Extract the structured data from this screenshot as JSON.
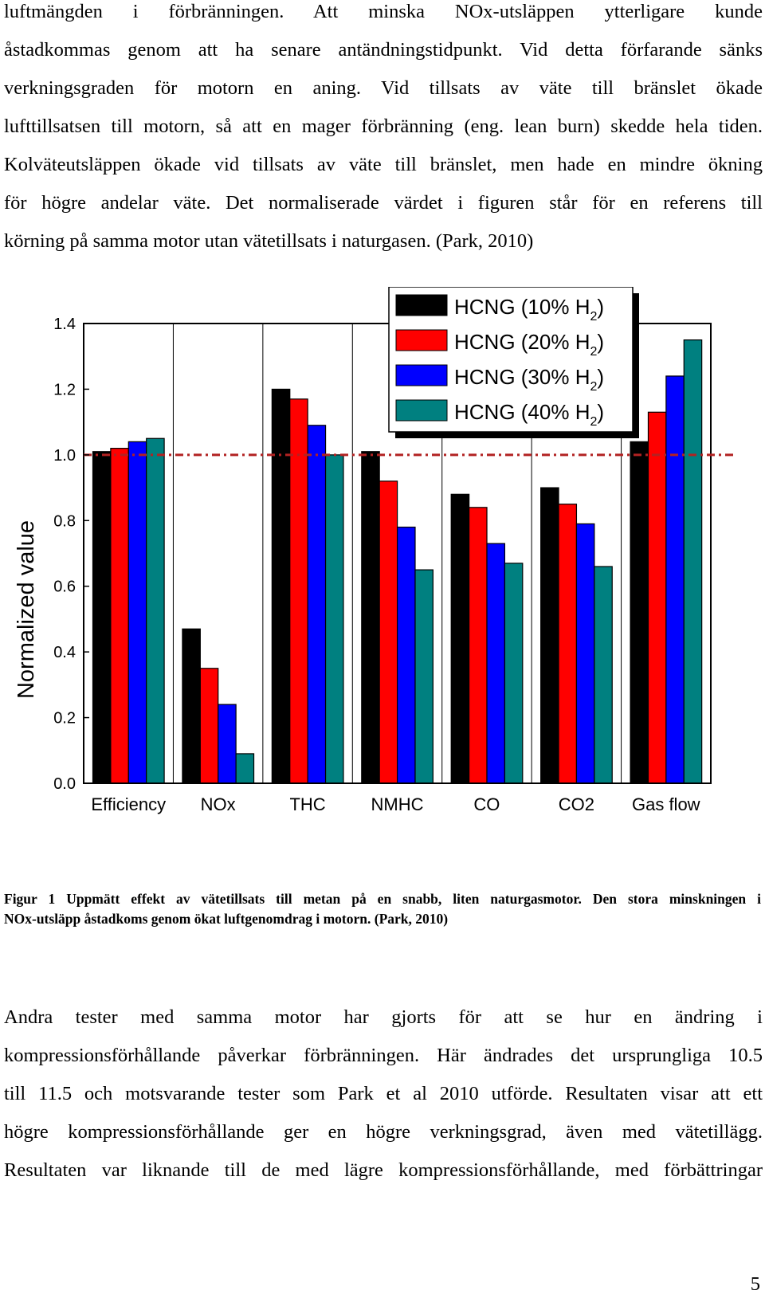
{
  "paragraph_1": {
    "lines": [
      "luftmängden i förbränningen. Att minska NOx-utsläppen ytterligare kunde",
      "åstadkommas genom att ha senare antändningstidpunkt. Vid detta förfarande sänks",
      "verkningsgraden för motorn en aning. Vid tillsats av väte till bränslet ökade",
      "lufttillsatsen till motorn, så att en mager förbränning (eng. lean burn) skedde hela tiden.",
      "Kolväteutsläppen ökade vid tillsats av väte till bränslet, men hade en mindre ökning",
      "för högre andelar väte. Det normaliserade värdet i figuren står för en referens till",
      "körning på samma motor utan vätetillsats i naturgasen. (Park, 2010)"
    ]
  },
  "caption": {
    "lines": [
      "Figur 1 Uppmätt effekt av vätetillsats till metan på en snabb, liten naturgasmotor. Den stora minskningen i",
      "NOx-utsläpp åstadkoms genom ökat luftgenomdrag i motorn. (Park, 2010)"
    ]
  },
  "paragraph_2": {
    "lines": [
      "Andra tester med samma motor har gjorts för att se hur en ändring i",
      "kompressionsförhållande påverkar förbränningen. Här ändrades det ursprungliga 10.5",
      "till 11.5 och motsvarande tester som Park et al 2010 utförde. Resultaten visar att ett",
      "högre kompressionsförhållande ger en högre verkningsgrad, även med vätetillägg.",
      "Resultaten var liknande till de med lägre kompressionsförhållande, med förbättringar"
    ]
  },
  "page_number": "5",
  "chart_data": {
    "type": "bar",
    "title": "",
    "xlabel": "",
    "ylabel": "Normalized value",
    "ylim": [
      0,
      1.4
    ],
    "yticks": [
      "0.0",
      "0.2",
      "0.4",
      "0.6",
      "0.8",
      "1.0",
      "1.2",
      "1.4"
    ],
    "categories": [
      "Efficiency",
      "NOx",
      "THC",
      "NMHC",
      "CO",
      "CO2",
      "Gas flow"
    ],
    "reference_line": 1.0,
    "legend_position": "top-center",
    "series": [
      {
        "name": "HCNG (10% H",
        "sub": "2",
        "close": ")",
        "color": "#000000",
        "values": [
          1.01,
          0.47,
          1.2,
          1.01,
          0.88,
          0.9,
          1.04
        ]
      },
      {
        "name": "HCNG (20% H",
        "sub": "2",
        "close": ")",
        "color": "#ff0000",
        "values": [
          1.02,
          0.35,
          1.17,
          0.92,
          0.84,
          0.85,
          1.13
        ]
      },
      {
        "name": "HCNG (30% H",
        "sub": "2",
        "close": ")",
        "color": "#0000ff",
        "values": [
          1.04,
          0.24,
          1.09,
          0.78,
          0.73,
          0.79,
          1.24
        ]
      },
      {
        "name": "HCNG (40% H",
        "sub": "2",
        "close": ")",
        "color": "#008080",
        "values": [
          1.05,
          0.09,
          1.0,
          0.65,
          0.67,
          0.66,
          1.35
        ]
      }
    ],
    "reference_line_color": "#b22222"
  }
}
